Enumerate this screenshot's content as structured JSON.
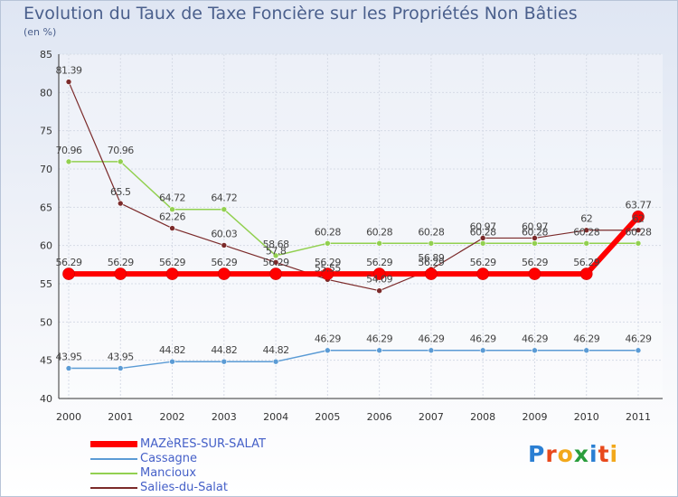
{
  "header": {
    "title": "Evolution du Taux de Taxe Foncière sur les Propriétés Non Bâties",
    "subtitle": "(en %)"
  },
  "logo": {
    "text": "Proxiti",
    "colors": [
      "#2b7fd3",
      "#e8491c",
      "#f2a81b",
      "#2a9d3c",
      "#2b7fd3",
      "#e8491c",
      "#f2a81b"
    ]
  },
  "chart_data": {
    "type": "line",
    "x": [
      "2000",
      "2001",
      "2002",
      "2003",
      "2004",
      "2005",
      "2006",
      "2007",
      "2008",
      "2009",
      "2010",
      "2011"
    ],
    "ylim": [
      40,
      85
    ],
    "yticks": [
      40,
      45,
      50,
      55,
      60,
      65,
      70,
      75,
      80,
      85
    ],
    "grid": true,
    "legend": "bottom-left",
    "series": [
      {
        "name": "MAZèRES-SUR-SALAT",
        "color": "#ff0000",
        "values": [
          56.29,
          56.29,
          56.29,
          56.29,
          56.29,
          56.29,
          56.29,
          56.29,
          56.29,
          56.29,
          56.29,
          63.77
        ],
        "labels": [
          "56.29",
          "56.29",
          "56.29",
          "56.29",
          "56.29",
          "56.29",
          "56.29",
          "56.29",
          "56.29",
          "56.29",
          "56.29",
          "63.77"
        ]
      },
      {
        "name": "Cassagne",
        "color": "#5b9bd5",
        "values": [
          43.95,
          43.95,
          44.82,
          44.82,
          44.82,
          46.29,
          46.29,
          46.29,
          46.29,
          46.29,
          46.29,
          46.29
        ],
        "labels": [
          "43.95",
          "43.95",
          "44.82",
          "44.82",
          "44.82",
          "46.29",
          "46.29",
          "46.29",
          "46.29",
          "46.29",
          "46.29",
          "46.29"
        ]
      },
      {
        "name": "Mancioux",
        "color": "#92d050",
        "values": [
          70.96,
          70.96,
          64.72,
          64.72,
          58.68,
          60.28,
          60.28,
          60.28,
          60.28,
          60.28,
          60.28,
          60.28
        ],
        "labels": [
          "70.96",
          "70.96",
          "64.72",
          "64.72",
          "58.68",
          "60.28",
          "60.28",
          "60.28",
          "60.28",
          "60.28",
          "60.28",
          "60.28"
        ]
      },
      {
        "name": "Salies-du-Salat",
        "color": "#7b2a2a",
        "values": [
          81.39,
          65.5,
          62.26,
          60.03,
          57.8,
          55.55,
          54.09,
          56.89,
          60.97,
          60.97,
          62,
          62
        ],
        "labels": [
          "81.39",
          "65.5",
          "62.26",
          "60.03",
          "57.8",
          "55.55",
          "54.09",
          "56.89",
          "60.97",
          "60.97",
          "62",
          "62"
        ]
      }
    ]
  }
}
